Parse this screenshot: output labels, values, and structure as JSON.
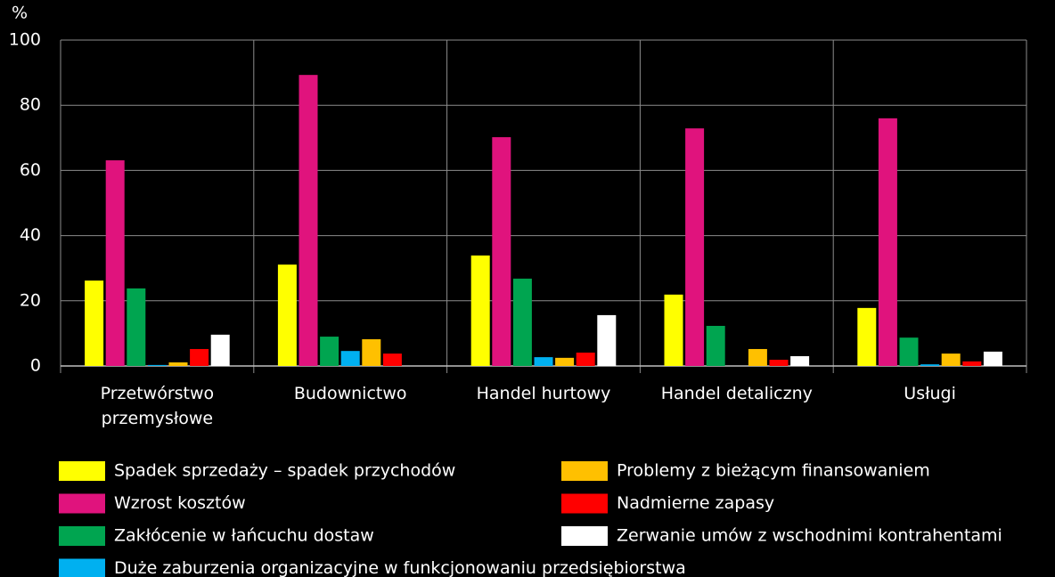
{
  "chart_data": {
    "type": "bar",
    "y_axis_label": "%",
    "categories": [
      "Przetwórstwo przemysłowe",
      "Budownictwo",
      "Handel hurtowy",
      "Handel detaliczny",
      "Usługi"
    ],
    "series": [
      {
        "name": "Spadek sprzedaży – spadek przychodów",
        "color": "#ffff00",
        "values": [
          26.2,
          31.1,
          33.9,
          21.9,
          17.8
        ]
      },
      {
        "name": "Wzrost kosztów",
        "color": "#e0137d",
        "values": [
          63.1,
          89.3,
          70.2,
          72.9,
          76.0
        ]
      },
      {
        "name": "Zakłócenie w łańcuchu dostaw",
        "color": "#00a550",
        "values": [
          23.8,
          9.0,
          26.8,
          12.3,
          8.7
        ]
      },
      {
        "name": "Duże zaburzenia organizacyjne w funkcjonowaniu przedsiębiorstwa",
        "color": "#00b0f0",
        "values": [
          0.3,
          4.6,
          2.7,
          0,
          0.5
        ]
      },
      {
        "name": "Problemy z bieżącym finansowaniem",
        "color": "#ffc000",
        "values": [
          1.1,
          8.2,
          2.5,
          5.2,
          3.8
        ]
      },
      {
        "name": "Nadmierne zapasy",
        "color": "#ff0000",
        "values": [
          5.2,
          3.8,
          4.1,
          1.9,
          1.4
        ]
      },
      {
        "name": "Zerwanie umów z wschodnimi kontrahentami",
        "color": "#ffffff",
        "values": [
          9.6,
          0,
          15.6,
          3.0,
          4.4
        ]
      }
    ],
    "ylim": [
      0,
      100
    ],
    "yticks": [
      0,
      20,
      40,
      60,
      80,
      100
    ],
    "grid": true
  }
}
